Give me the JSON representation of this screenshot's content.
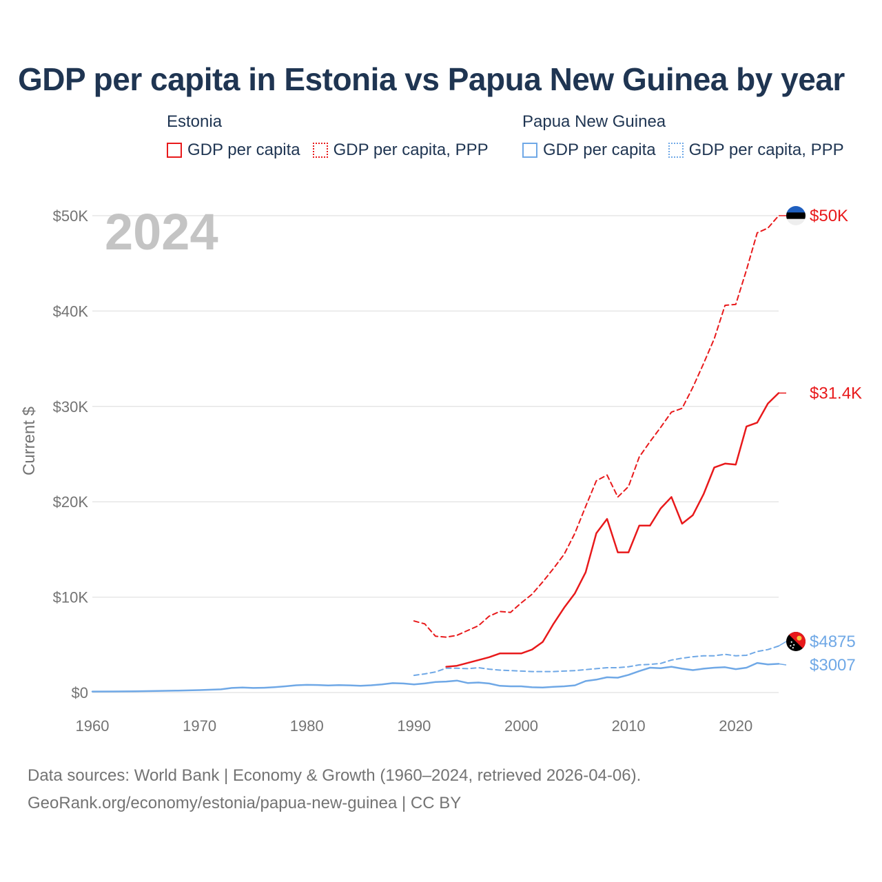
{
  "title": "GDP per capita in Estonia vs Papua New Guinea by year",
  "legend": {
    "estonia": {
      "title": "Estonia",
      "items": [
        {
          "label": "GDP per capita",
          "style": "solid",
          "color": "#e8191b"
        },
        {
          "label": "GDP per capita, PPP",
          "style": "dotted",
          "color": "#e8191b"
        }
      ]
    },
    "png": {
      "title": "Papua New Guinea",
      "items": [
        {
          "label": "GDP per capita",
          "style": "solid",
          "color": "#6fa8e6"
        },
        {
          "label": "GDP per capita, PPP",
          "style": "dotted",
          "color": "#6fa8e6"
        }
      ]
    }
  },
  "chart_data": {
    "type": "line",
    "year_label": "2024",
    "ylabel": "Current $",
    "xlabel": "",
    "xlim": [
      1960,
      2024
    ],
    "ylim": [
      0,
      50000
    ],
    "x_ticks": [
      1960,
      1970,
      1980,
      1990,
      2000,
      2010,
      2020
    ],
    "x_tick_labels": [
      "1960",
      "1970",
      "1980",
      "1990",
      "2000",
      "2010",
      "2020"
    ],
    "y_ticks": [
      0,
      10000,
      20000,
      30000,
      40000,
      50000
    ],
    "y_tick_labels": [
      "$0",
      "$10K",
      "$20K",
      "$30K",
      "$40K",
      "$50K"
    ],
    "grid": true,
    "series": [
      {
        "name": "Estonia GDP per capita, PPP",
        "color": "#e8191b",
        "dash": "dashed",
        "end_label": "$50K",
        "flag": "estonia",
        "x": [
          1990,
          1991,
          1992,
          1993,
          1994,
          1995,
          1996,
          1997,
          1998,
          1999,
          2000,
          2001,
          2002,
          2003,
          2004,
          2005,
          2006,
          2007,
          2008,
          2009,
          2010,
          2011,
          2012,
          2013,
          2014,
          2015,
          2016,
          2017,
          2018,
          2019,
          2020,
          2021,
          2022,
          2023,
          2024
        ],
        "values": [
          7500,
          7200,
          5900,
          5800,
          6000,
          6500,
          7000,
          8000,
          8500,
          8400,
          9400,
          10300,
          11600,
          13000,
          14500,
          16700,
          19500,
          22200,
          22800,
          20500,
          21600,
          24700,
          26300,
          27800,
          29400,
          29800,
          32000,
          34500,
          37100,
          40600,
          40700,
          44300,
          48200,
          48700,
          50000
        ]
      },
      {
        "name": "Estonia GDP per capita",
        "color": "#e8191b",
        "dash": "solid",
        "end_label": "$31.4K",
        "flag": "estonia",
        "x": [
          1993,
          1994,
          1995,
          1996,
          1997,
          1998,
          1999,
          2000,
          2001,
          2002,
          2003,
          2004,
          2005,
          2006,
          2007,
          2008,
          2009,
          2010,
          2011,
          2012,
          2013,
          2014,
          2015,
          2016,
          2017,
          2018,
          2019,
          2020,
          2021,
          2022,
          2023,
          2024
        ],
        "values": [
          2700,
          2800,
          3100,
          3400,
          3700,
          4100,
          4100,
          4100,
          4500,
          5300,
          7200,
          8900,
          10400,
          12600,
          16700,
          18200,
          14700,
          14700,
          17500,
          17500,
          19300,
          20500,
          17700,
          18600,
          20800,
          23600,
          24000,
          23900,
          27900,
          28300,
          30300,
          31400
        ]
      },
      {
        "name": "Papua New Guinea GDP per capita, PPP",
        "color": "#6fa8e6",
        "dash": "dashed",
        "end_label": "$4875",
        "flag": "png",
        "x": [
          1990,
          1991,
          1992,
          1993,
          1994,
          1995,
          1996,
          1997,
          1998,
          1999,
          2000,
          2001,
          2002,
          2003,
          2004,
          2005,
          2006,
          2007,
          2008,
          2009,
          2010,
          2011,
          2012,
          2013,
          2014,
          2015,
          2016,
          2017,
          2018,
          2019,
          2020,
          2021,
          2022,
          2023,
          2024
        ],
        "values": [
          1800,
          1950,
          2150,
          2550,
          2550,
          2500,
          2600,
          2450,
          2350,
          2300,
          2250,
          2200,
          2200,
          2200,
          2250,
          2300,
          2400,
          2500,
          2600,
          2600,
          2700,
          2900,
          2950,
          3050,
          3400,
          3600,
          3750,
          3850,
          3850,
          4000,
          3850,
          3900,
          4300,
          4500,
          4875
        ]
      },
      {
        "name": "Papua New Guinea GDP per capita",
        "color": "#6fa8e6",
        "dash": "solid",
        "end_label": "$3007",
        "flag": "png",
        "x": [
          1960,
          1962,
          1964,
          1966,
          1968,
          1970,
          1972,
          1973,
          1974,
          1975,
          1976,
          1977,
          1978,
          1979,
          1980,
          1981,
          1982,
          1983,
          1984,
          1985,
          1986,
          1987,
          1988,
          1989,
          1990,
          1991,
          1992,
          1993,
          1994,
          1995,
          1996,
          1997,
          1998,
          1999,
          2000,
          2001,
          2002,
          2003,
          2004,
          2005,
          2006,
          2007,
          2008,
          2009,
          2010,
          2011,
          2012,
          2013,
          2014,
          2015,
          2016,
          2017,
          2018,
          2019,
          2020,
          2021,
          2022,
          2023,
          2024
        ],
        "values": [
          100,
          110,
          130,
          160,
          200,
          250,
          330,
          480,
          520,
          480,
          500,
          560,
          650,
          760,
          800,
          790,
          740,
          780,
          750,
          710,
          760,
          850,
          980,
          950,
          850,
          950,
          1100,
          1150,
          1250,
          1000,
          1050,
          950,
          700,
          650,
          650,
          550,
          520,
          600,
          650,
          750,
          1200,
          1350,
          1600,
          1550,
          1850,
          2250,
          2600,
          2550,
          2700,
          2500,
          2350,
          2500,
          2600,
          2650,
          2450,
          2600,
          3100,
          2950,
          3007
        ]
      }
    ]
  },
  "footer": {
    "line1": "Data sources: World Bank | Economy & Growth (1960–2024, retrieved 2026-04-06).",
    "line2": "GeoRank.org/economy/estonia/papua-new-guinea | CC BY"
  }
}
